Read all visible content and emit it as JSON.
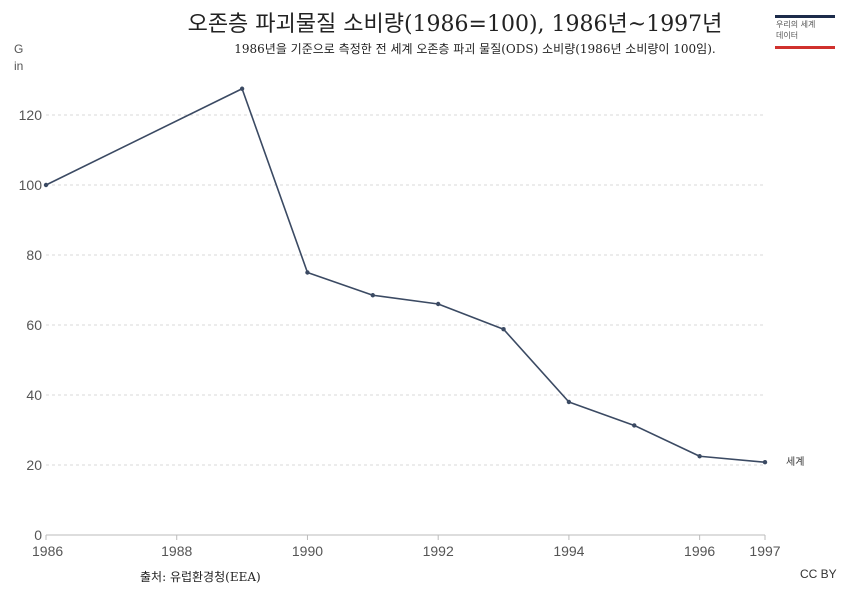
{
  "header": {
    "title": "오존층 파괴물질 소비량(1986=100), 1986년~1997년",
    "subtitle": "1986년을 기준으로 측정한 전 세계 오존층 파괴 물질(ODS) 소비량(1986년 소비량이 100임)."
  },
  "logo": {
    "text": "우리의 세계\n데이터"
  },
  "units_label": "G\nin",
  "footer": {
    "source": "출처: 유럽환경청(EEA)",
    "license": "CC BY"
  },
  "colors": {
    "line": "#3b4a63",
    "grid": "#d9d9d9",
    "axis": "#bbbbbb"
  },
  "chart_data": {
    "type": "line",
    "title": "오존층 파괴물질 소비량(1986=100), 1986년~1997년",
    "xlabel": "",
    "ylabel": "",
    "xlim": [
      1986,
      1997
    ],
    "ylim": [
      0,
      130
    ],
    "x_ticks": [
      "1986",
      "1988",
      "1990",
      "1992",
      "1994",
      "1996",
      "1997"
    ],
    "y_ticks": [
      "0",
      "20",
      "40",
      "60",
      "80",
      "100",
      "120"
    ],
    "grid": true,
    "series": [
      {
        "name": "세계",
        "x": [
          1986,
          1989,
          1990,
          1991,
          1992,
          1993,
          1994,
          1995,
          1996,
          1997
        ],
        "y": [
          100,
          127.5,
          75,
          68.5,
          66,
          58.8,
          38,
          31.3,
          22.5,
          20.8
        ]
      }
    ]
  }
}
